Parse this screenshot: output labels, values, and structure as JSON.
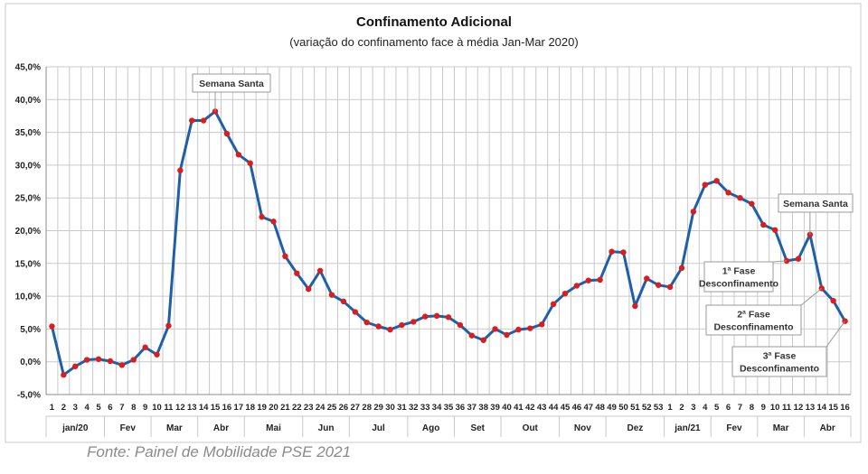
{
  "chart_data": {
    "type": "line",
    "title": "Confinamento Adicional",
    "subtitle": "(variação do confinamento face à média Jan-Mar 2020)",
    "ylim": [
      -5,
      45
    ],
    "yticks": [
      "-5,0%",
      "0,0%",
      "5,0%",
      "10,0%",
      "15,0%",
      "20,0%",
      "25,0%",
      "30,0%",
      "35,0%",
      "40,0%",
      "45,0%"
    ],
    "x_labels": [
      "1",
      "2",
      "3",
      "4",
      "5",
      "6",
      "7",
      "8",
      "9",
      "10",
      "11",
      "12",
      "13",
      "14",
      "15",
      "16",
      "17",
      "18",
      "19",
      "20",
      "21",
      "22",
      "23",
      "24",
      "25",
      "26",
      "27",
      "28",
      "29",
      "30",
      "31",
      "32",
      "33",
      "34",
      "35",
      "36",
      "37",
      "38",
      "39",
      "40",
      "41",
      "42",
      "43",
      "44",
      "45",
      "46",
      "47",
      "48",
      "49",
      "50",
      "51",
      "52",
      "53",
      "1",
      "2",
      "3",
      "4",
      "5",
      "6",
      "7",
      "8",
      "9",
      "10",
      "11",
      "12",
      "13",
      "14",
      "15",
      "16"
    ],
    "months": [
      {
        "label": "jan/20",
        "start": 0,
        "end": 4
      },
      {
        "label": "Fev",
        "start": 5,
        "end": 8
      },
      {
        "label": "Mar",
        "start": 9,
        "end": 12
      },
      {
        "label": "Abr",
        "start": 13,
        "end": 16
      },
      {
        "label": "Mai",
        "start": 17,
        "end": 21
      },
      {
        "label": "Jun",
        "start": 22,
        "end": 25
      },
      {
        "label": "Jul",
        "start": 26,
        "end": 30
      },
      {
        "label": "Ago",
        "start": 31,
        "end": 34
      },
      {
        "label": "Set",
        "start": 35,
        "end": 38
      },
      {
        "label": "Out",
        "start": 39,
        "end": 43
      },
      {
        "label": "Nov",
        "start": 44,
        "end": 47
      },
      {
        "label": "Dez",
        "start": 48,
        "end": 52
      },
      {
        "label": "jan/21",
        "start": 53,
        "end": 56
      },
      {
        "label": "Fev",
        "start": 57,
        "end": 60
      },
      {
        "label": "Mar",
        "start": 61,
        "end": 64
      },
      {
        "label": "Abr",
        "start": 65,
        "end": 68
      }
    ],
    "series": [
      {
        "values": [
          5.4,
          -2.0,
          -0.7,
          0.3,
          0.4,
          0.1,
          -0.5,
          0.3,
          2.2,
          1.1,
          5.5,
          29.2,
          36.8,
          36.8,
          38.2,
          34.8,
          31.6,
          30.3,
          22.1,
          21.4,
          16.1,
          13.5,
          11.1,
          13.9,
          10.2,
          9.2,
          7.6,
          6.0,
          5.4,
          4.9,
          5.6,
          6.1,
          6.9,
          7.0,
          6.8,
          5.6,
          4.0,
          3.3,
          5.0,
          4.1,
          4.9,
          5.1,
          5.7,
          8.8,
          10.4,
          11.6,
          12.4,
          12.5,
          16.8,
          16.7,
          8.5,
          12.7,
          11.7,
          11.4,
          14.3,
          22.9,
          27.0,
          27.6,
          25.8,
          25.0,
          24.1,
          20.9,
          20.1,
          15.4,
          15.7,
          19.4,
          11.2,
          9.3,
          6.2
        ]
      }
    ],
    "annotations": [
      {
        "lines": [
          "Semana Santa"
        ],
        "point_index": 14
      },
      {
        "lines": [
          "Semana Santa"
        ],
        "point_index": 65
      },
      {
        "lines": [
          "1ª Fase",
          "Desconfinamento"
        ],
        "point_index": 63
      },
      {
        "lines": [
          "2ª Fase",
          "Desconfinamento"
        ],
        "point_index": 66
      },
      {
        "lines": [
          "3ª Fase",
          "Desconfinamento"
        ],
        "point_index": 68
      }
    ],
    "grid": true,
    "colors": {
      "line": "#1f5fa8",
      "marker": "#e01b1b",
      "grid": "#c9c9c9"
    }
  },
  "source": "Fonte: Painel de Mobilidade PSE 2021"
}
